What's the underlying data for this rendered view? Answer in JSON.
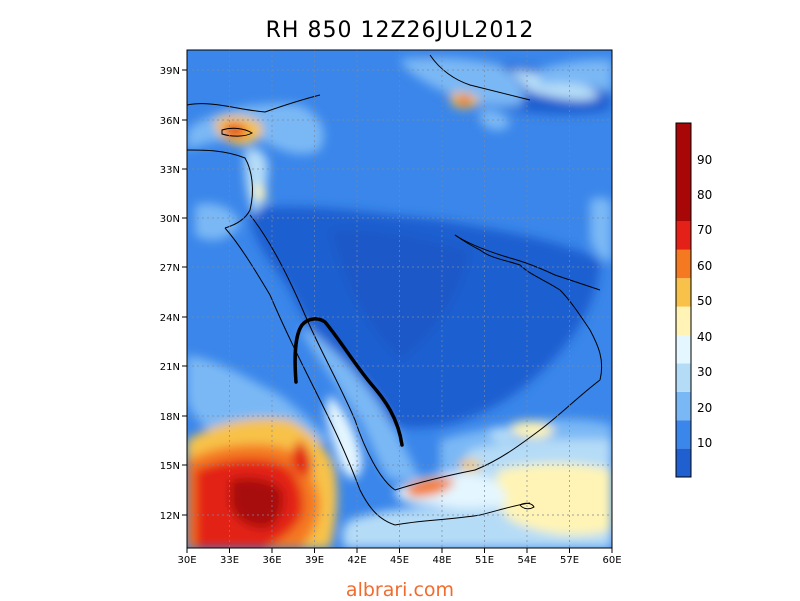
{
  "title": "RH 850  12Z26JUL2012",
  "watermark": "albrari.com",
  "map": {
    "lon_range": [
      30,
      60
    ],
    "lat_range": [
      10,
      40
    ],
    "lon_ticks": [
      "30E",
      "33E",
      "36E",
      "39E",
      "42E",
      "45E",
      "48E",
      "51E",
      "54E",
      "57E",
      "60E"
    ],
    "lat_ticks": [
      "12N",
      "15N",
      "18N",
      "21N",
      "24N",
      "27N",
      "30N",
      "33N",
      "36N",
      "39N"
    ],
    "grid": "dotted",
    "variable": "relative humidity at 850 hPa",
    "annotation": "hand-drawn black curve from about 38E 20N north to 39E 24N then south-east to 45E 17N"
  },
  "colorbar": {
    "placement": "right",
    "labels": [
      "10",
      "20",
      "30",
      "40",
      "50",
      "60",
      "70",
      "80",
      "90"
    ],
    "colors": [
      "#1f5fd0",
      "#3a86ea",
      "#7ab8f5",
      "#b5dcf7",
      "#e4f6ff",
      "#fff4b5",
      "#f8c24a",
      "#f47920",
      "#e32118",
      "#a80707"
    ]
  }
}
